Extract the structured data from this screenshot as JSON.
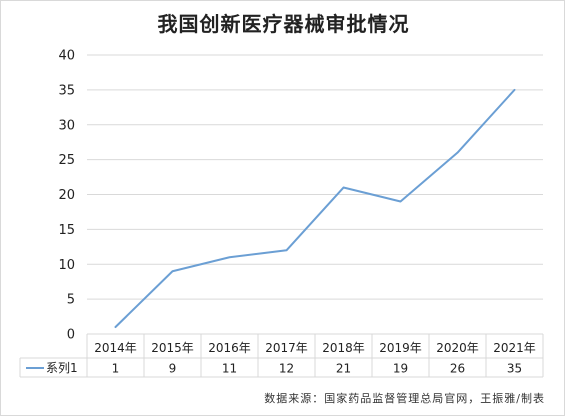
{
  "chart_data": {
    "type": "line",
    "title": "我国创新医疗器械审批情况",
    "categories": [
      "2014年",
      "2015年",
      "2016年",
      "2017年",
      "2018年",
      "2019年",
      "2020年",
      "2021年"
    ],
    "series": [
      {
        "name": "系列1",
        "values": [
          1,
          9,
          11,
          12,
          21,
          19,
          26,
          35
        ],
        "color": "#6b9fd4"
      }
    ],
    "ylim": [
      0,
      40
    ],
    "yticks": [
      0,
      5,
      10,
      15,
      20,
      25,
      30,
      35,
      40
    ],
    "grid": true,
    "legend": "data-table"
  },
  "source_note": "数据来源：国家药品监督管理总局官网，王振雅/制表"
}
